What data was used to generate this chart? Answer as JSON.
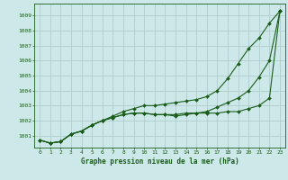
{
  "title": "Graphe pression niveau de la mer (hPa)",
  "background_color": "#cce8e8",
  "grid_color": "#b0cccc",
  "line_color": "#1a5c1a",
  "marker_color": "#1a5c1a",
  "xlim": [
    -0.5,
    23.5
  ],
  "ylim": [
    1000.2,
    1009.8
  ],
  "xticks": [
    0,
    1,
    2,
    3,
    4,
    5,
    6,
    7,
    8,
    9,
    10,
    11,
    12,
    13,
    14,
    15,
    16,
    17,
    18,
    19,
    20,
    21,
    22,
    23
  ],
  "yticks": [
    1001,
    1002,
    1003,
    1004,
    1005,
    1006,
    1007,
    1008,
    1009
  ],
  "series_upper": [
    1000.7,
    1000.5,
    1000.6,
    1001.1,
    1001.3,
    1001.7,
    1002.0,
    1002.3,
    1002.6,
    1002.8,
    1003.0,
    1003.0,
    1003.1,
    1003.2,
    1003.3,
    1003.4,
    1003.6,
    1004.0,
    1004.8,
    1005.8,
    1006.8,
    1007.5,
    1008.5,
    1009.3
  ],
  "series_middle": [
    1000.7,
    1000.5,
    1000.6,
    1001.1,
    1001.3,
    1001.7,
    1002.0,
    1002.2,
    1002.4,
    1002.5,
    1002.5,
    1002.4,
    1002.4,
    1002.4,
    1002.5,
    1002.5,
    1002.6,
    1002.9,
    1003.2,
    1003.5,
    1004.0,
    1004.9,
    1006.0,
    1009.3
  ],
  "series_lower": [
    1000.7,
    1000.5,
    1000.6,
    1001.1,
    1001.3,
    1001.7,
    1002.0,
    1002.2,
    1002.4,
    1002.5,
    1002.5,
    1002.4,
    1002.4,
    1002.3,
    1002.4,
    1002.5,
    1002.5,
    1002.5,
    1002.6,
    1002.6,
    1002.8,
    1003.0,
    1003.5,
    1009.3
  ]
}
